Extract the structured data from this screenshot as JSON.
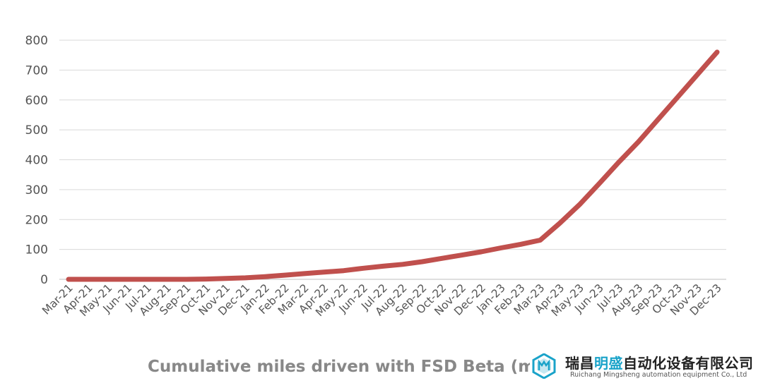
{
  "chart_data": {
    "type": "line",
    "xlabel": "Cumulative miles driven with FSD Beta (m",
    "ylabel": "",
    "ylim": [
      0,
      800
    ],
    "yticks": [
      "0",
      "100",
      "200",
      "300",
      "400",
      "500",
      "600",
      "700",
      "800"
    ],
    "grid": true,
    "categories": [
      "Mar-21",
      "Apr-21",
      "May-21",
      "Jun-21",
      "Jul-21",
      "Aug-21",
      "Sep-21",
      "Oct-21",
      "Nov-21",
      "Dec-21",
      "Jan-22",
      "Feb-22",
      "Mar-22",
      "Apr-22",
      "May-22",
      "Jun-22",
      "Jul-22",
      "Aug-22",
      "Sep-22",
      "Oct-22",
      "Nov-22",
      "Dec-22",
      "Jan-23",
      "Feb-23",
      "Mar-23",
      "Apr-23",
      "May-23",
      "Jun-23",
      "Jul-23",
      "Aug-23",
      "Sep-23",
      "Oct-23",
      "Nov-23",
      "Dec-23"
    ],
    "series": [
      {
        "color": "#c0504d",
        "values": [
          0,
          0,
          0,
          0,
          0,
          0,
          0,
          1,
          3,
          5,
          9,
          14,
          19,
          24,
          29,
          37,
          44,
          50,
          59,
          70,
          81,
          92,
          105,
          117,
          131,
          188,
          250,
          320,
          392,
          460,
          535,
          610,
          685,
          760
        ]
      }
    ]
  },
  "watermark": {
    "name_part1": "瑞昌",
    "name_highlight": "明盛",
    "name_part2": "自动化设备有限公司",
    "subtitle": "Ruichang Mingsheng automation equipment Co., Ltd",
    "colors": {
      "accent": "#1aa3c9",
      "text": "#222222"
    },
    "icon": "hexagon-logo"
  }
}
